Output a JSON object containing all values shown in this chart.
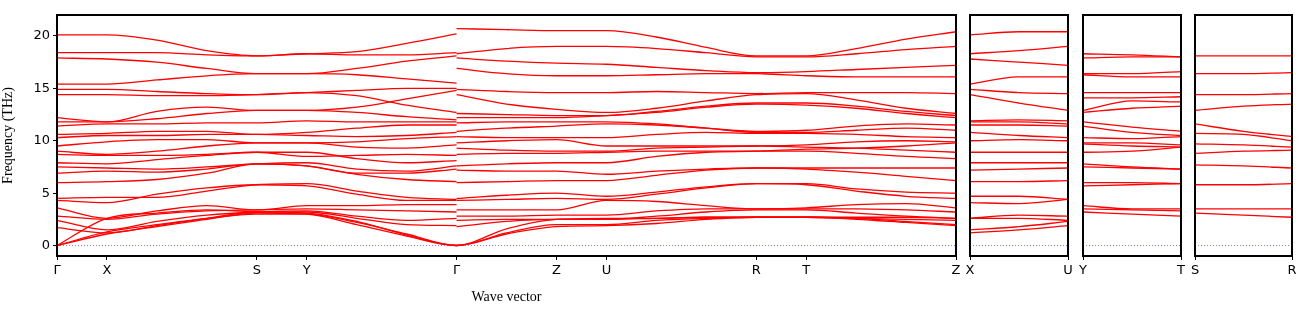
{
  "chart_data": [
    {
      "type": "line",
      "xlabel": "Wave vector",
      "ylabel": "Frequency (THz)",
      "categories": [
        "Γ",
        "X",
        null,
        null,
        "S",
        "Y",
        null,
        null,
        "Γ",
        null,
        "Z",
        "U",
        null,
        null,
        "R",
        "T",
        null,
        null,
        "Z"
      ],
      "ylim": [
        -1,
        22
      ],
      "yticks": [
        0,
        5,
        10,
        15,
        20
      ],
      "grid": false,
      "legend": false,
      "marker": "none",
      "ref_lines": [
        {
          "axis": "y",
          "value": 0,
          "color": "#7f7fff",
          "line_style": "dotted"
        }
      ],
      "series": [
        {
          "color": "#ff0000",
          "values": [
            20.1,
            20.1,
            19.6,
            18.6,
            18.1,
            18.3,
            18.5,
            19.3,
            20.2,
            null,
            null,
            null,
            null,
            null,
            null,
            null,
            null,
            null,
            null
          ]
        },
        {
          "color": "#ff0000",
          "values": [
            18.4,
            18.4,
            18.4,
            18.2,
            18.1,
            18.3,
            18.2,
            18.2,
            18.4,
            null,
            null,
            null,
            null,
            null,
            null,
            null,
            null,
            null,
            null
          ]
        },
        {
          "color": "#ff0000",
          "values": [
            17.9,
            17.8,
            17.5,
            16.9,
            16.4,
            16.4,
            16.9,
            17.6,
            18.1,
            null,
            null,
            null,
            null,
            null,
            null,
            null,
            null,
            null,
            null
          ]
        },
        {
          "color": "#ff0000",
          "values": [
            15.4,
            15.4,
            15.8,
            16.2,
            16.4,
            16.4,
            16.3,
            15.9,
            15.5,
            null,
            null,
            null,
            null,
            null,
            null,
            null,
            null,
            null,
            null
          ]
        },
        {
          "color": "#ff0000",
          "values": [
            14.9,
            14.9,
            14.7,
            14.5,
            14.4,
            14.6,
            14.8,
            15.0,
            15.0,
            null,
            null,
            null,
            null,
            null,
            null,
            null,
            null,
            null,
            null
          ]
        },
        {
          "color": "#ff0000",
          "values": [
            14.4,
            14.4,
            14.3,
            14.3,
            14.4,
            14.6,
            14.3,
            13.4,
            12.7,
            null,
            null,
            null,
            null,
            null,
            null,
            null,
            null,
            null,
            null
          ]
        },
        {
          "color": "#ff0000",
          "values": [
            12.2,
            11.8,
            12.8,
            13.2,
            12.9,
            12.9,
            13.2,
            14.0,
            14.8,
            null,
            null,
            null,
            null,
            null,
            null,
            null,
            null,
            null,
            null
          ]
        },
        {
          "color": "#ff0000",
          "values": [
            11.8,
            11.8,
            12.1,
            12.6,
            12.9,
            12.9,
            12.7,
            12.3,
            12.0,
            null,
            null,
            null,
            null,
            null,
            null,
            null,
            null,
            null,
            null
          ]
        },
        {
          "color": "#ff0000",
          "values": [
            11.4,
            11.6,
            11.6,
            11.7,
            11.7,
            11.9,
            11.8,
            11.8,
            11.8,
            null,
            null,
            null,
            null,
            null,
            null,
            null,
            null,
            null,
            null
          ]
        },
        {
          "color": "#ff0000",
          "values": [
            10.6,
            10.7,
            10.9,
            10.9,
            10.6,
            10.8,
            11.2,
            11.5,
            11.5,
            null,
            null,
            null,
            null,
            null,
            null,
            null,
            null,
            null,
            null
          ]
        },
        {
          "color": "#ff0000",
          "values": [
            10.3,
            10.5,
            10.5,
            10.6,
            10.6,
            10.5,
            10.4,
            10.5,
            10.8,
            null,
            null,
            null,
            null,
            null,
            null,
            null,
            null,
            null,
            null
          ]
        },
        {
          "color": "#ff0000",
          "values": [
            9.5,
            9.9,
            10.1,
            10.1,
            9.8,
            9.8,
            9.9,
            10.2,
            10.4,
            null,
            null,
            null,
            null,
            null,
            null,
            null,
            null,
            null,
            null
          ]
        },
        {
          "color": "#ff0000",
          "values": [
            9.0,
            8.7,
            9.0,
            9.5,
            9.8,
            9.8,
            9.4,
            9.3,
            9.6,
            null,
            null,
            null,
            null,
            null,
            null,
            null,
            null,
            null,
            null
          ]
        },
        {
          "color": "#ff0000",
          "values": [
            8.7,
            8.6,
            8.6,
            8.7,
            8.9,
            8.5,
            8.6,
            8.7,
            8.6,
            null,
            null,
            null,
            null,
            null,
            null,
            null,
            null,
            null,
            null
          ]
        },
        {
          "color": "#ff0000",
          "values": [
            7.9,
            7.8,
            8.2,
            8.6,
            8.9,
            8.9,
            8.3,
            7.9,
            8.1,
            null,
            null,
            null,
            null,
            null,
            null,
            null,
            null,
            null,
            null
          ]
        },
        {
          "color": "#ff0000",
          "values": [
            7.5,
            7.4,
            7.3,
            7.5,
            7.8,
            7.9,
            7.3,
            7.1,
            7.6,
            null,
            null,
            null,
            null,
            null,
            null,
            null,
            null,
            null,
            null
          ]
        },
        {
          "color": "#ff0000",
          "values": [
            6.9,
            7.1,
            7.0,
            7.3,
            7.8,
            7.6,
            6.9,
            6.9,
            7.3,
            null,
            null,
            null,
            null,
            null,
            null,
            null,
            null,
            null,
            null
          ]
        },
        {
          "color": "#ff0000",
          "values": [
            6.0,
            6.1,
            6.3,
            6.9,
            7.8,
            7.6,
            6.8,
            6.3,
            6.1,
            null,
            null,
            null,
            null,
            null,
            null,
            null,
            null,
            null,
            null
          ]
        },
        {
          "color": "#ff0000",
          "values": [
            4.5,
            4.6,
            4.6,
            5.2,
            5.8,
            5.9,
            5.2,
            4.6,
            4.4,
            null,
            null,
            null,
            null,
            null,
            null,
            null,
            null,
            null,
            null
          ]
        },
        {
          "color": "#ff0000",
          "values": [
            4.3,
            4.1,
            4.9,
            5.5,
            5.8,
            5.7,
            4.9,
            4.3,
            4.3,
            null,
            null,
            null,
            null,
            null,
            null,
            null,
            null,
            null,
            null
          ]
        },
        {
          "color": "#ff0000",
          "values": [
            3.6,
            2.6,
            3.3,
            3.8,
            3.4,
            3.8,
            3.8,
            3.9,
            3.9,
            null,
            null,
            null,
            null,
            null,
            null,
            null,
            null,
            null,
            null
          ]
        },
        {
          "color": "#ff0000",
          "values": [
            2.8,
            2.5,
            3.0,
            3.3,
            3.4,
            3.5,
            3.4,
            3.3,
            3.2,
            null,
            null,
            null,
            null,
            null,
            null,
            null,
            null,
            null,
            null
          ]
        },
        {
          "color": "#ff0000",
          "values": [
            2.4,
            1.5,
            2.3,
            2.9,
            3.2,
            3.3,
            2.8,
            2.4,
            2.6,
            null,
            null,
            null,
            null,
            null,
            null,
            null,
            null,
            null,
            null
          ]
        },
        {
          "color": "#ff0000",
          "values": [
            1.7,
            1.2,
            1.9,
            2.6,
            3.2,
            3.2,
            2.6,
            2.0,
            1.9,
            null,
            null,
            null,
            null,
            null,
            null,
            null,
            null,
            null,
            null
          ]
        },
        {
          "color": "#ff0000",
          "values": [
            0,
            2.6,
            3.1,
            3.4,
            3.2,
            3.1,
            2.3,
            1.0,
            0,
            1.6,
            2.5,
            2.6,
            2.6,
            2.7,
            2.7,
            2.7,
            2.6,
            2.5,
            2.4
          ]
        },
        {
          "color": "#ff0000",
          "values": [
            0,
            1.3,
            2.0,
            2.6,
            3.0,
            3.0,
            2.2,
            1.1,
            0,
            1.2,
            2.0,
            2.0,
            2.4,
            2.6,
            2.7,
            2.7,
            2.5,
            2.2,
            1.9
          ]
        },
        {
          "color": "#ff0000",
          "values": [
            0,
            1.1,
            1.8,
            2.5,
            3.1,
            3.0,
            2.0,
            0.9,
            0,
            1.1,
            1.8,
            1.9,
            2.1,
            2.5,
            2.7,
            2.7,
            2.6,
            2.3,
            2.0
          ]
        },
        {
          "color": "#ff0000",
          "values": [
            null,
            null,
            null,
            null,
            null,
            null,
            null,
            null,
            20.7,
            20.6,
            20.5,
            20.5,
            19.9,
            18.9,
            18.1,
            18.1,
            18.8,
            19.7,
            20.4
          ]
        },
        {
          "color": "#ff0000",
          "values": [
            null,
            null,
            null,
            null,
            null,
            null,
            null,
            null,
            18.3,
            18.8,
            19.0,
            19.0,
            18.8,
            18.4,
            18.0,
            18.0,
            18.3,
            18.7,
            19.0
          ]
        },
        {
          "color": "#ff0000",
          "values": [
            null,
            null,
            null,
            null,
            null,
            null,
            null,
            null,
            17.9,
            17.6,
            17.4,
            17.3,
            17.0,
            16.7,
            16.5,
            16.6,
            16.8,
            17.0,
            17.2
          ]
        },
        {
          "color": "#ff0000",
          "values": [
            null,
            null,
            null,
            null,
            null,
            null,
            null,
            null,
            16.9,
            16.4,
            16.2,
            16.2,
            16.3,
            16.4,
            16.4,
            16.2,
            16.1,
            16.1,
            16.1
          ]
        },
        {
          "color": "#ff0000",
          "values": [
            null,
            null,
            null,
            null,
            null,
            null,
            null,
            null,
            14.9,
            14.7,
            14.6,
            14.6,
            14.7,
            14.6,
            14.5,
            14.6,
            14.6,
            14.6,
            14.5
          ]
        },
        {
          "color": "#ff0000",
          "values": [
            null,
            null,
            null,
            null,
            null,
            null,
            null,
            null,
            14.4,
            13.5,
            13.0,
            12.7,
            13.1,
            13.8,
            14.4,
            14.5,
            13.9,
            13.1,
            12.6
          ]
        },
        {
          "color": "#ff0000",
          "values": [
            null,
            null,
            null,
            null,
            null,
            null,
            null,
            null,
            12.6,
            12.5,
            12.4,
            12.4,
            12.8,
            13.3,
            13.6,
            13.6,
            13.3,
            12.8,
            12.4
          ]
        },
        {
          "color": "#ff0000",
          "values": [
            null,
            null,
            null,
            null,
            null,
            null,
            null,
            null,
            12.2,
            12.2,
            12.2,
            12.4,
            12.7,
            13.2,
            13.5,
            13.4,
            13.1,
            12.6,
            12.2
          ]
        },
        {
          "color": "#ff0000",
          "values": [
            null,
            null,
            null,
            null,
            null,
            null,
            null,
            null,
            11.7,
            11.8,
            11.8,
            11.8,
            11.6,
            11.2,
            10.9,
            11.0,
            11.4,
            11.6,
            11.5
          ]
        },
        {
          "color": "#ff0000",
          "values": [
            null,
            null,
            null,
            null,
            null,
            null,
            null,
            null,
            10.9,
            11.2,
            11.4,
            11.6,
            11.5,
            11.2,
            10.8,
            10.8,
            11.0,
            11.2,
            11.0
          ]
        },
        {
          "color": "#ff0000",
          "values": [
            null,
            null,
            null,
            null,
            null,
            null,
            null,
            null,
            10.4,
            10.3,
            10.3,
            10.3,
            10.6,
            10.8,
            10.7,
            10.7,
            10.6,
            10.4,
            10.3
          ]
        },
        {
          "color": "#ff0000",
          "values": [
            null,
            null,
            null,
            null,
            null,
            null,
            null,
            null,
            9.8,
            10.0,
            10.1,
            9.5,
            9.5,
            9.5,
            9.5,
            9.6,
            9.9,
            10.0,
            9.9
          ]
        },
        {
          "color": "#ff0000",
          "values": [
            null,
            null,
            null,
            null,
            null,
            null,
            null,
            null,
            9.3,
            9.1,
            9.0,
            9.0,
            9.3,
            9.4,
            9.5,
            9.4,
            9.3,
            9.1,
            8.9
          ]
        },
        {
          "color": "#ff0000",
          "values": [
            null,
            null,
            null,
            null,
            null,
            null,
            null,
            null,
            8.7,
            8.8,
            8.8,
            8.9,
            9.0,
            9.0,
            9.0,
            9.0,
            8.8,
            8.5,
            8.3
          ]
        },
        {
          "color": "#ff0000",
          "values": [
            null,
            null,
            null,
            null,
            null,
            null,
            null,
            null,
            7.6,
            7.8,
            7.9,
            7.9,
            8.5,
            8.9,
            9.0,
            9.2,
            9.3,
            9.5,
            9.8
          ]
        },
        {
          "color": "#ff0000",
          "values": [
            null,
            null,
            null,
            null,
            null,
            null,
            null,
            null,
            7.2,
            7.1,
            7.1,
            6.8,
            7.1,
            7.3,
            7.4,
            7.4,
            7.4,
            7.4,
            7.4
          ]
        },
        {
          "color": "#ff0000",
          "values": [
            null,
            null,
            null,
            null,
            null,
            null,
            null,
            null,
            6.0,
            6.1,
            6.2,
            6.2,
            6.7,
            7.2,
            7.4,
            7.3,
            7.0,
            6.6,
            6.2
          ]
        },
        {
          "color": "#ff0000",
          "values": [
            null,
            null,
            null,
            null,
            null,
            null,
            null,
            null,
            4.5,
            4.8,
            5.0,
            4.7,
            5.1,
            5.6,
            5.9,
            5.9,
            5.4,
            5.1,
            5.0
          ]
        },
        {
          "color": "#ff0000",
          "values": [
            null,
            null,
            null,
            null,
            null,
            null,
            null,
            null,
            4.3,
            4.4,
            4.5,
            4.4,
            4.9,
            5.5,
            5.9,
            5.8,
            5.2,
            4.7,
            4.5
          ]
        },
        {
          "color": "#ff0000",
          "values": [
            null,
            null,
            null,
            null,
            null,
            null,
            null,
            null,
            3.4,
            3.4,
            3.4,
            4.3,
            4.2,
            3.8,
            3.5,
            3.6,
            3.9,
            4.0,
            3.6
          ]
        },
        {
          "color": "#ff0000",
          "values": [
            null,
            null,
            null,
            null,
            null,
            null,
            null,
            null,
            2.8,
            2.8,
            2.9,
            2.9,
            3.3,
            3.5,
            3.5,
            3.5,
            3.5,
            3.4,
            3.2
          ]
        },
        {
          "color": "#ff0000",
          "values": [
            null,
            null,
            null,
            null,
            null,
            null,
            null,
            null,
            2.4,
            2.5,
            2.5,
            2.5,
            2.8,
            3.2,
            3.4,
            3.4,
            3.1,
            2.8,
            2.6
          ]
        },
        {
          "color": "#ff0000",
          "values": [
            null,
            null,
            null,
            null,
            null,
            null,
            null,
            null,
            1.8,
            2.3,
            2.5,
            2.5,
            2.6,
            2.7,
            2.7,
            2.7,
            2.7,
            2.7,
            2.6
          ]
        }
      ]
    },
    {
      "type": "line",
      "categories": [
        "X",
        null,
        "U"
      ],
      "ylim": [
        -1,
        22
      ],
      "yticks": [
        0,
        5,
        10,
        15,
        20
      ],
      "tick_labels": "x",
      "grid": false,
      "legend": false,
      "marker": "none",
      "ref_lines": [
        {
          "axis": "y",
          "value": 0,
          "color": "#7f7fff",
          "line_style": "dotted"
        }
      ],
      "series": [
        {
          "color": "#ff0000",
          "values": [
            20.1,
            20.4,
            20.4
          ]
        },
        {
          "color": "#ff0000",
          "values": [
            18.3,
            18.6,
            19.0
          ]
        },
        {
          "color": "#ff0000",
          "values": [
            17.8,
            17.5,
            17.2
          ]
        },
        {
          "color": "#ff0000",
          "values": [
            15.4,
            16.1,
            16.1
          ]
        },
        {
          "color": "#ff0000",
          "values": [
            14.9,
            14.6,
            14.5
          ]
        },
        {
          "color": "#ff0000",
          "values": [
            14.4,
            13.6,
            12.9
          ]
        },
        {
          "color": "#ff0000",
          "values": [
            11.9,
            12.0,
            11.9
          ]
        },
        {
          "color": "#ff0000",
          "values": [
            11.8,
            11.8,
            11.6
          ]
        },
        {
          "color": "#ff0000",
          "values": [
            11.5,
            11.5,
            11.4
          ]
        },
        {
          "color": "#ff0000",
          "values": [
            10.8,
            10.5,
            10.3
          ]
        },
        {
          "color": "#ff0000",
          "values": [
            10.0,
            10.1,
            10.0
          ]
        },
        {
          "color": "#ff0000",
          "values": [
            8.9,
            8.9,
            8.9
          ]
        },
        {
          "color": "#ff0000",
          "values": [
            7.9,
            7.9,
            7.9
          ]
        },
        {
          "color": "#ff0000",
          "values": [
            7.2,
            7.3,
            7.4
          ]
        },
        {
          "color": "#ff0000",
          "values": [
            6.1,
            6.1,
            6.2
          ]
        },
        {
          "color": "#ff0000",
          "values": [
            4.7,
            4.7,
            4.4
          ]
        },
        {
          "color": "#ff0000",
          "values": [
            4.1,
            4.0,
            4.4
          ]
        },
        {
          "color": "#ff0000",
          "values": [
            2.6,
            2.9,
            2.8
          ]
        },
        {
          "color": "#ff0000",
          "values": [
            2.6,
            2.6,
            2.4
          ]
        },
        {
          "color": "#ff0000",
          "values": [
            1.5,
            1.8,
            2.3
          ]
        },
        {
          "color": "#ff0000",
          "values": [
            1.2,
            1.5,
            1.9
          ]
        }
      ]
    },
    {
      "type": "line",
      "categories": [
        "Y",
        null,
        "T"
      ],
      "ylim": [
        -1,
        22
      ],
      "yticks": [
        0,
        5,
        10,
        15,
        20
      ],
      "tick_labels": "x",
      "grid": false,
      "legend": false,
      "marker": "none",
      "ref_lines": [
        {
          "axis": "y",
          "value": 0,
          "color": "#7f7fff",
          "line_style": "dotted"
        }
      ],
      "series": [
        {
          "color": "#ff0000",
          "values": [
            18.3,
            18.2,
            18.0
          ]
        },
        {
          "color": "#ff0000",
          "values": [
            17.9,
            18.0,
            18.0
          ]
        },
        {
          "color": "#ff0000",
          "values": [
            16.4,
            16.4,
            16.6
          ]
        },
        {
          "color": "#ff0000",
          "values": [
            16.3,
            16.1,
            16.1
          ]
        },
        {
          "color": "#ff0000",
          "values": [
            14.6,
            14.6,
            14.6
          ]
        },
        {
          "color": "#ff0000",
          "values": [
            14.1,
            14.1,
            14.2
          ]
        },
        {
          "color": "#ff0000",
          "values": [
            12.9,
            13.8,
            13.7
          ]
        },
        {
          "color": "#ff0000",
          "values": [
            12.7,
            13.1,
            13.3
          ]
        },
        {
          "color": "#ff0000",
          "values": [
            11.8,
            11.3,
            10.9
          ]
        },
        {
          "color": "#ff0000",
          "values": [
            11.4,
            10.8,
            10.5
          ]
        },
        {
          "color": "#ff0000",
          "values": [
            10.3,
            10.2,
            10.4
          ]
        },
        {
          "color": "#ff0000",
          "values": [
            9.8,
            9.8,
            9.6
          ]
        },
        {
          "color": "#ff0000",
          "values": [
            9.7,
            9.5,
            9.4
          ]
        },
        {
          "color": "#ff0000",
          "values": [
            8.9,
            9.0,
            9.4
          ]
        },
        {
          "color": "#ff0000",
          "values": [
            7.8,
            7.5,
            7.3
          ]
        },
        {
          "color": "#ff0000",
          "values": [
            7.5,
            7.4,
            7.3
          ]
        },
        {
          "color": "#ff0000",
          "values": [
            6.0,
            6.0,
            5.9
          ]
        },
        {
          "color": "#ff0000",
          "values": [
            5.7,
            5.8,
            5.9
          ]
        },
        {
          "color": "#ff0000",
          "values": [
            3.8,
            3.5,
            3.5
          ]
        },
        {
          "color": "#ff0000",
          "values": [
            3.5,
            3.4,
            3.3
          ]
        },
        {
          "color": "#ff0000",
          "values": [
            3.2,
            3.0,
            2.8
          ]
        }
      ]
    },
    {
      "type": "line",
      "categories": [
        "S",
        null,
        "R"
      ],
      "ylim": [
        -1,
        22
      ],
      "yticks": [
        0,
        5,
        10,
        15,
        20
      ],
      "tick_labels": "x",
      "grid": false,
      "legend": false,
      "marker": "none",
      "ref_lines": [
        {
          "axis": "y",
          "value": 0,
          "color": "#7f7fff",
          "line_style": "dotted"
        }
      ],
      "series": [
        {
          "color": "#ff0000",
          "values": [
            18.1,
            18.1,
            18.1
          ]
        },
        {
          "color": "#ff0000",
          "values": [
            16.4,
            16.4,
            16.5
          ]
        },
        {
          "color": "#ff0000",
          "values": [
            14.4,
            14.4,
            14.5
          ]
        },
        {
          "color": "#ff0000",
          "values": [
            12.9,
            13.3,
            13.5
          ]
        },
        {
          "color": "#ff0000",
          "values": [
            11.6,
            10.9,
            10.4
          ]
        },
        {
          "color": "#ff0000",
          "values": [
            10.7,
            10.6,
            10.0
          ]
        },
        {
          "color": "#ff0000",
          "values": [
            9.7,
            9.6,
            9.4
          ]
        },
        {
          "color": "#ff0000",
          "values": [
            8.8,
            9.0,
            9.1
          ]
        },
        {
          "color": "#ff0000",
          "values": [
            7.7,
            7.6,
            7.4
          ]
        },
        {
          "color": "#ff0000",
          "values": [
            5.8,
            5.8,
            5.9
          ]
        },
        {
          "color": "#ff0000",
          "values": [
            3.5,
            3.5,
            3.5
          ]
        },
        {
          "color": "#ff0000",
          "values": [
            3.1,
            2.9,
            2.7
          ]
        }
      ]
    }
  ]
}
